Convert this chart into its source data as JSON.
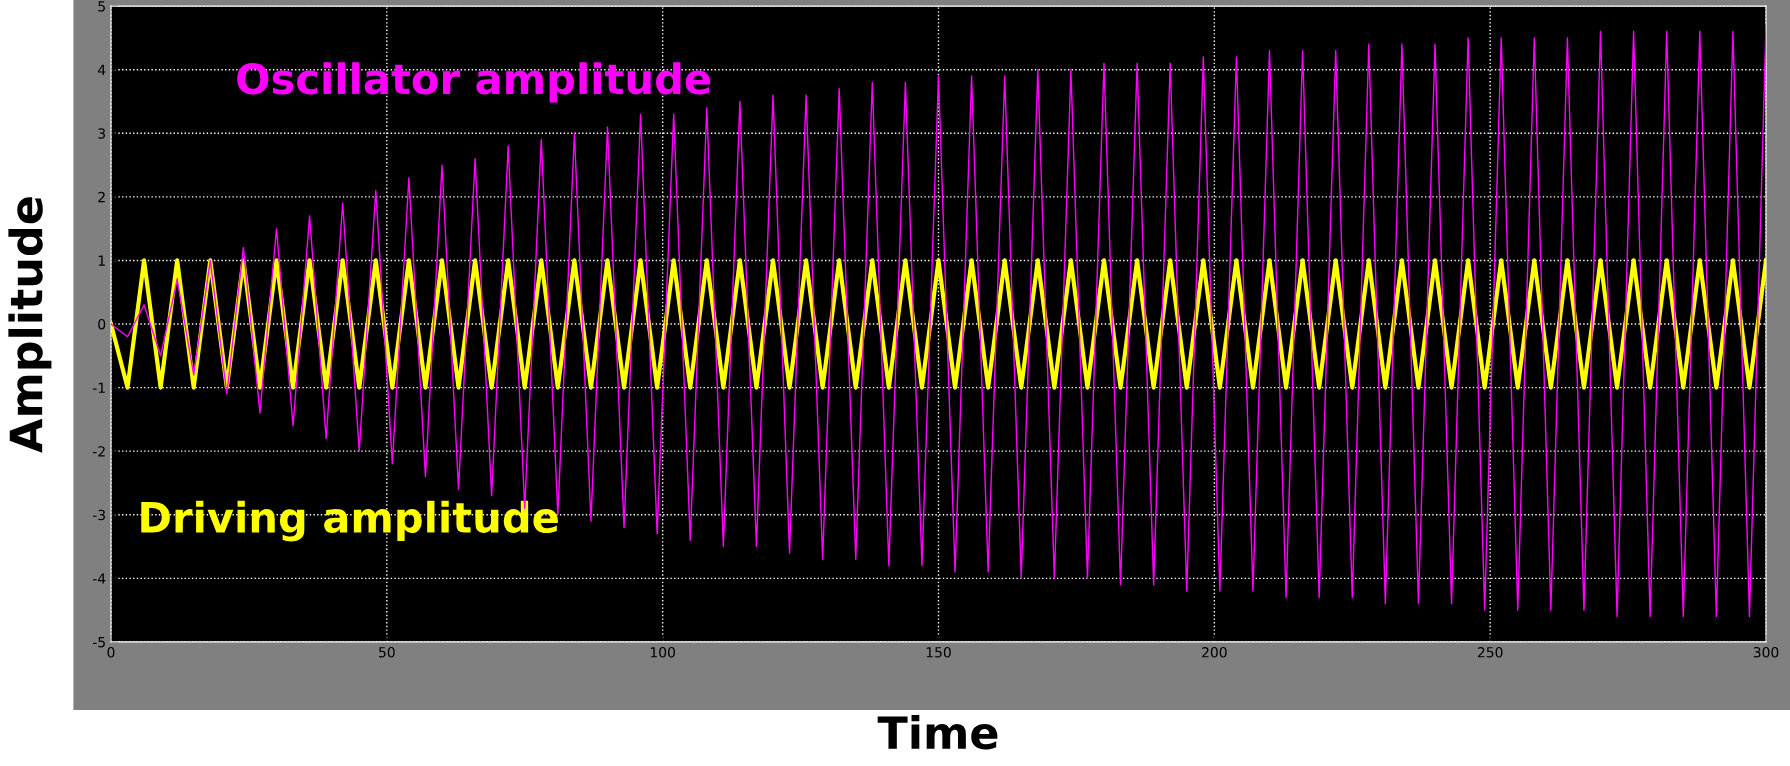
{
  "chart_data": {
    "type": "line",
    "xlabel": "Time",
    "ylabel": "Amplitude",
    "xlim": [
      0,
      300
    ],
    "ylim": [
      -5,
      5
    ],
    "xticks": [
      0,
      50,
      100,
      150,
      200,
      250,
      300
    ],
    "yticks": [
      -5,
      -4,
      -3,
      -2,
      -1,
      0,
      1,
      2,
      3,
      4,
      5
    ],
    "grid": true,
    "legend": false,
    "marker": "none",
    "line_style": "solid",
    "x": [
      0,
      3,
      6,
      9,
      12,
      15,
      18,
      21,
      24,
      27,
      30,
      33,
      36,
      39,
      42,
      45,
      48,
      51,
      54,
      57,
      60,
      63,
      66,
      69,
      72,
      75,
      78,
      81,
      84,
      87,
      90,
      93,
      96,
      99,
      102,
      105,
      108,
      111,
      114,
      117,
      120,
      123,
      126,
      129,
      132,
      135,
      138,
      141,
      144,
      147,
      150,
      153,
      156,
      159,
      162,
      165,
      168,
      171,
      174,
      177,
      180,
      183,
      186,
      189,
      192,
      195,
      198,
      201,
      204,
      207,
      210,
      213,
      216,
      219,
      222,
      225,
      228,
      231,
      234,
      237,
      240,
      243,
      246,
      249,
      252,
      255,
      258,
      261,
      264,
      267,
      270,
      273,
      276,
      279,
      282,
      285,
      288,
      291,
      294,
      297,
      300
    ],
    "series": [
      {
        "name": "Driving amplitude",
        "color": "#ffff00",
        "values": [
          0,
          -1,
          1,
          -1,
          1,
          -1,
          1,
          -1,
          1,
          -1,
          1,
          -1,
          1,
          -1,
          1,
          -1,
          1,
          -1,
          1,
          -1,
          1,
          -1,
          1,
          -1,
          1,
          -1,
          1,
          -1,
          1,
          -1,
          1,
          -1,
          1,
          -1,
          1,
          -1,
          1,
          -1,
          1,
          -1,
          1,
          -1,
          1,
          -1,
          1,
          -1,
          1,
          -1,
          1,
          -1,
          1,
          -1,
          1,
          -1,
          1,
          -1,
          1,
          -1,
          1,
          -1,
          1,
          -1,
          1,
          -1,
          1,
          -1,
          1,
          -1,
          1,
          -1,
          1,
          -1,
          1,
          -1,
          1,
          -1,
          1,
          -1,
          1,
          -1,
          1,
          -1,
          1,
          -1,
          1,
          -1,
          1,
          -1,
          1,
          -1,
          1,
          -1,
          1,
          -1,
          1,
          -1,
          1,
          -1,
          1,
          -1,
          1
        ]
      },
      {
        "name": "Oscillator amplitude",
        "color": "#ff00ff",
        "values": [
          0,
          -0.2,
          0.3,
          -0.5,
          0.7,
          -0.8,
          1.0,
          -1.1,
          1.2,
          -1.4,
          1.5,
          -1.6,
          1.7,
          -1.8,
          1.9,
          -2.0,
          2.1,
          -2.2,
          2.3,
          -2.4,
          2.5,
          -2.6,
          2.6,
          -2.7,
          2.8,
          -2.9,
          2.9,
          -3.0,
          3.0,
          -3.1,
          3.1,
          -3.2,
          3.3,
          -3.3,
          3.3,
          -3.4,
          3.4,
          -3.5,
          3.5,
          -3.5,
          3.6,
          -3.6,
          3.6,
          -3.7,
          3.7,
          -3.7,
          3.8,
          -3.8,
          3.8,
          -3.8,
          3.9,
          -3.9,
          3.9,
          -3.9,
          3.9,
          -4.0,
          4.0,
          -4.0,
          4.0,
          -4.0,
          4.1,
          -4.1,
          4.1,
          -4.1,
          4.1,
          -4.2,
          4.2,
          -4.2,
          4.2,
          -4.2,
          4.3,
          -4.3,
          4.3,
          -4.3,
          4.3,
          -4.3,
          4.4,
          -4.4,
          4.4,
          -4.4,
          4.4,
          -4.4,
          4.5,
          -4.5,
          4.5,
          -4.5,
          4.5,
          -4.5,
          4.5,
          -4.5,
          4.6,
          -4.6,
          4.6,
          -4.6,
          4.6,
          -4.6,
          4.6,
          -4.6,
          4.6,
          -4.6,
          4.7
        ]
      }
    ]
  }
}
